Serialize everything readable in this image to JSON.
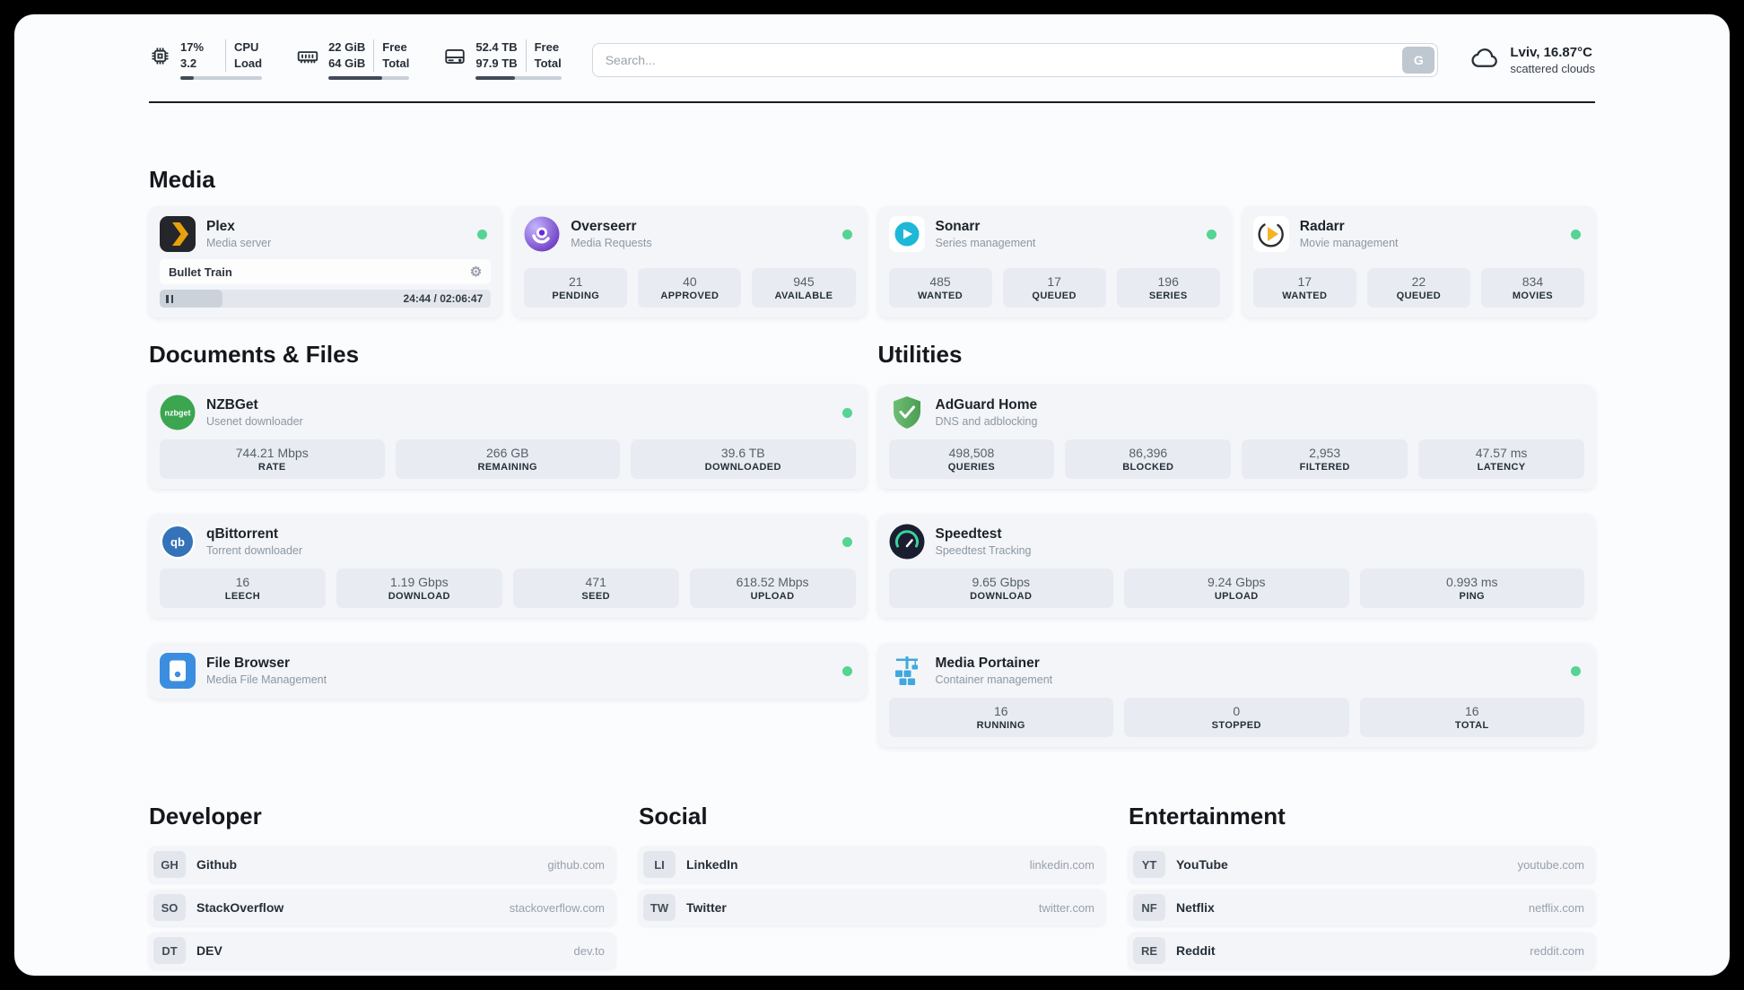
{
  "topbar": {
    "cpu": {
      "value_top": "17%",
      "value_bottom": "3.2",
      "label_top": "CPU",
      "label_bottom": "Load",
      "bar_percent": 17
    },
    "ram": {
      "value_top": "22 GiB",
      "value_bottom": "64 GiB",
      "label_top": "Free",
      "label_bottom": "Total",
      "bar_percent": 66
    },
    "disk": {
      "value_top": "52.4 TB",
      "value_bottom": "97.9 TB",
      "label_top": "Free",
      "label_bottom": "Total",
      "bar_percent": 46
    },
    "search": {
      "placeholder": "Search...",
      "button_label": "G"
    },
    "weather": {
      "location_temp": "Lviv, 16.87°C",
      "condition": "scattered clouds"
    }
  },
  "sections": {
    "media": {
      "title": "Media",
      "cards": [
        {
          "name": "Plex",
          "subtitle": "Media server",
          "player": {
            "title": "Bullet Train",
            "time": "24:44 / 02:06:47",
            "progress_percent": 19
          }
        },
        {
          "name": "Overseerr",
          "subtitle": "Media Requests",
          "stats": [
            {
              "value": "21",
              "label": "PENDING"
            },
            {
              "value": "40",
              "label": "APPROVED"
            },
            {
              "value": "945",
              "label": "AVAILABLE"
            }
          ]
        },
        {
          "name": "Sonarr",
          "subtitle": "Series management",
          "stats": [
            {
              "value": "485",
              "label": "WANTED"
            },
            {
              "value": "17",
              "label": "QUEUED"
            },
            {
              "value": "196",
              "label": "SERIES"
            }
          ]
        },
        {
          "name": "Radarr",
          "subtitle": "Movie management",
          "stats": [
            {
              "value": "17",
              "label": "WANTED"
            },
            {
              "value": "22",
              "label": "QUEUED"
            },
            {
              "value": "834",
              "label": "MOVIES"
            }
          ]
        }
      ]
    },
    "documents": {
      "title": "Documents & Files",
      "cards": [
        {
          "name": "NZBGet",
          "subtitle": "Usenet downloader",
          "stats": [
            {
              "value": "744.21 Mbps",
              "label": "RATE"
            },
            {
              "value": "266 GB",
              "label": "REMAINING"
            },
            {
              "value": "39.6 TB",
              "label": "DOWNLOADED"
            }
          ]
        },
        {
          "name": "qBittorrent",
          "subtitle": "Torrent downloader",
          "stats": [
            {
              "value": "16",
              "label": "LEECH"
            },
            {
              "value": "1.19 Gbps",
              "label": "DOWNLOAD"
            },
            {
              "value": "471",
              "label": "SEED"
            },
            {
              "value": "618.52 Mbps",
              "label": "UPLOAD"
            }
          ]
        },
        {
          "name": "File Browser",
          "subtitle": "Media File Management"
        }
      ]
    },
    "utilities": {
      "title": "Utilities",
      "cards": [
        {
          "name": "AdGuard Home",
          "subtitle": "DNS and adblocking",
          "stats": [
            {
              "value": "498,508",
              "label": "QUERIES"
            },
            {
              "value": "86,396",
              "label": "BLOCKED"
            },
            {
              "value": "2,953",
              "label": "FILTERED"
            },
            {
              "value": "47.57 ms",
              "label": "LATENCY"
            }
          ]
        },
        {
          "name": "Speedtest",
          "subtitle": "Speedtest Tracking",
          "stats": [
            {
              "value": "9.65 Gbps",
              "label": "DOWNLOAD"
            },
            {
              "value": "9.24 Gbps",
              "label": "UPLOAD"
            },
            {
              "value": "0.993 ms",
              "label": "PING"
            }
          ]
        },
        {
          "name": "Media Portainer",
          "subtitle": "Container management",
          "stats": [
            {
              "value": "16",
              "label": "RUNNING"
            },
            {
              "value": "0",
              "label": "STOPPED"
            },
            {
              "value": "16",
              "label": "TOTAL"
            }
          ]
        }
      ]
    },
    "developer": {
      "title": "Developer",
      "links": [
        {
          "abbr": "GH",
          "name": "Github",
          "domain": "github.com"
        },
        {
          "abbr": "SO",
          "name": "StackOverflow",
          "domain": "stackoverflow.com"
        },
        {
          "abbr": "DT",
          "name": "DEV",
          "domain": "dev.to"
        }
      ]
    },
    "social": {
      "title": "Social",
      "links": [
        {
          "abbr": "LI",
          "name": "LinkedIn",
          "domain": "linkedin.com"
        },
        {
          "abbr": "TW",
          "name": "Twitter",
          "domain": "twitter.com"
        }
      ]
    },
    "entertainment": {
      "title": "Entertainment",
      "links": [
        {
          "abbr": "YT",
          "name": "YouTube",
          "domain": "youtube.com"
        },
        {
          "abbr": "NF",
          "name": "Netflix",
          "domain": "netflix.com"
        },
        {
          "abbr": "RE",
          "name": "Reddit",
          "domain": "reddit.com"
        }
      ]
    }
  },
  "colors": {
    "status_online": "#55d492",
    "plex_accent": "#e8a00d",
    "divider": "#171d24"
  }
}
